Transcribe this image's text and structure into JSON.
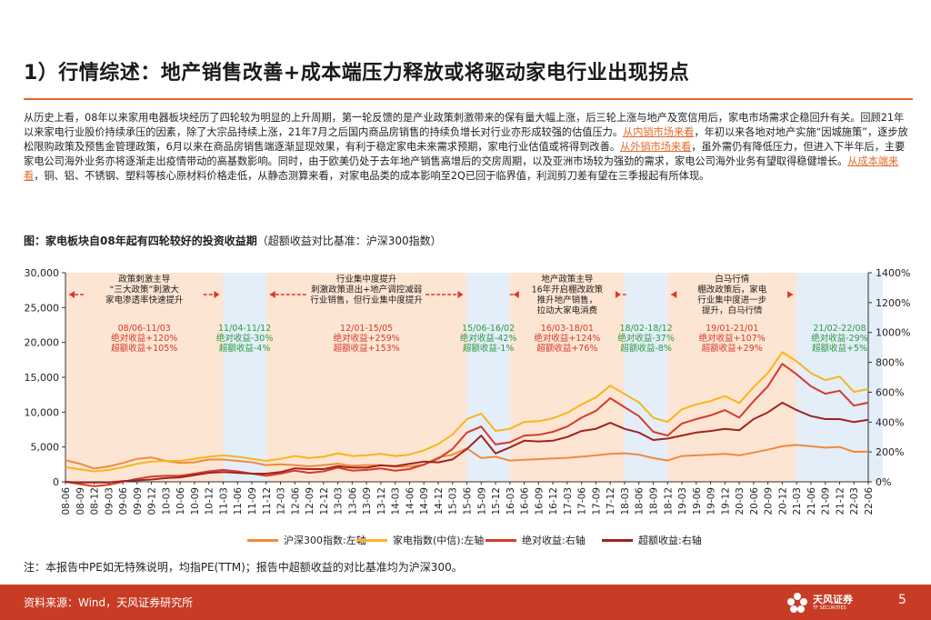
{
  "header": {
    "title": "1）行情综述：地产销售改善+成本端压力释放或将驱动家电行业出现拐点"
  },
  "intro": {
    "p1": "从历史上看，08年以来家用电器板块经历了四轮较为明显的上升周期，第一轮反馈的是产业政策刺激带来的保有量大幅上涨，后三轮上涨与地产及宽信用后，家电市场需求企稳回升有关。回顾21年以来家电行业股价持续承压的因素，除了大宗品持续上涨，21年7月之后国内商品房销售的持续负增长对行业亦形成较强的估值压力。",
    "hl1": "从内销市场来看",
    "p2": "，年初以来各地对地产实施“因城施策”，逐步放松限购政策及预售金管理政策，6月以来在商品房销售端逐渐显现效果，有利于稳定家电未来需求预期，家电行业估值或将得到改善。",
    "hl2": "从外销市场来看",
    "p3": "，虽外需仍有降低压力，但进入下半年后，主要家电公司海外业务亦将逐渐走出疫情带动的高基数影响。同时，由于欧美仍处于去年地产销售高增后的交房周期，以及亚洲市场较为强劲的需求，家电公司海外业务有望取得稳健增长。",
    "hl3": "从成本端来看",
    "p4": "，铜、铝、不锈钢、塑料等核心原材料价格走低，从静态测算来看，对家电品类的成本影响至2Q已回于临界值，利润剪刀差有望在三季报起有所体现。"
  },
  "figure": {
    "caption_bold": "图：家电板块自08年起有四轮较好的投资收益期",
    "caption_rest": "（超额收益对比基准：沪深300指数）"
  },
  "chart_data": {
    "type": "line",
    "x_ticks": [
      "08-06",
      "08-09",
      "08-12",
      "09-03",
      "09-06",
      "09-09",
      "09-12",
      "10-03",
      "10-06",
      "10-09",
      "10-12",
      "11-03",
      "11-06",
      "11-09",
      "11-12",
      "12-03",
      "12-06",
      "12-09",
      "12-12",
      "13-03",
      "13-06",
      "13-09",
      "13-12",
      "14-03",
      "14-06",
      "14-09",
      "14-12",
      "15-03",
      "15-06",
      "15-09",
      "15-12",
      "16-03",
      "16-06",
      "16-09",
      "16-12",
      "17-03",
      "17-06",
      "17-09",
      "17-12",
      "18-03",
      "18-06",
      "18-09",
      "18-12",
      "19-03",
      "19-06",
      "19-09",
      "19-12",
      "20-03",
      "20-06",
      "20-09",
      "20-12",
      "21-03",
      "21-06",
      "21-09",
      "21-12",
      "22-03",
      "22-06"
    ],
    "y_left": {
      "min": 0,
      "max": 30000,
      "ticks": [
        "0",
        "5,000",
        "10,000",
        "15,000",
        "20,000",
        "25,000",
        "30,000"
      ]
    },
    "y_right": {
      "min": 0,
      "max": 1400,
      "ticks": [
        "0%",
        "200%",
        "400%",
        "600%",
        "800%",
        "1000%",
        "1200%",
        "1400%"
      ]
    },
    "series": [
      {
        "name": "沪深300指数:左轴",
        "axis": "left",
        "color": "#f08a3c",
        "values": [
          3100,
          2600,
          1900,
          2200,
          2700,
          3300,
          3500,
          3000,
          2700,
          2800,
          3200,
          3200,
          3000,
          2800,
          2400,
          2500,
          2400,
          2200,
          2400,
          2600,
          2300,
          2400,
          2400,
          2150,
          2200,
          2450,
          3500,
          3900,
          4800,
          3400,
          3600,
          3050,
          3150,
          3250,
          3350,
          3450,
          3600,
          3800,
          4000,
          4100,
          3900,
          3400,
          3050,
          3700,
          3800,
          3900,
          4000,
          3800,
          4200,
          4600,
          5100,
          5300,
          5100,
          4900,
          5000,
          4300,
          4350
        ]
      },
      {
        "name": "家电指数(中信):左轴",
        "axis": "left",
        "color": "#f7b51d",
        "values": [
          2100,
          1800,
          1500,
          1700,
          2100,
          2600,
          2900,
          3000,
          3000,
          3300,
          3600,
          3800,
          3600,
          3300,
          3000,
          3300,
          3700,
          3400,
          3600,
          4100,
          3700,
          3800,
          4000,
          3700,
          3900,
          4500,
          5400,
          6800,
          9000,
          9800,
          7300,
          7600,
          8600,
          8700,
          9100,
          9900,
          11100,
          12100,
          13800,
          12600,
          11400,
          9200,
          8600,
          10400,
          11100,
          11600,
          12300,
          11300,
          13600,
          15600,
          18600,
          17300,
          15600,
          14600,
          15100,
          12900,
          13300
        ]
      },
      {
        "name": "绝对收益:右轴",
        "axis": "right",
        "color": "#d63a2a",
        "values": [
          0,
          -15,
          -30,
          -20,
          0,
          20,
          35,
          40,
          40,
          55,
          70,
          80,
          70,
          55,
          40,
          55,
          75,
          60,
          70,
          95,
          75,
          80,
          90,
          75,
          85,
          115,
          155,
          220,
          330,
          370,
          250,
          265,
          310,
          315,
          335,
          370,
          430,
          475,
          560,
          500,
          440,
          335,
          310,
          390,
          420,
          445,
          480,
          430,
          540,
          640,
          790,
          720,
          640,
          590,
          610,
          510,
          530
        ]
      },
      {
        "name": "超额收益:右轴",
        "axis": "right",
        "color": "#9e2420",
        "values": [
          0,
          -5,
          -5,
          -5,
          5,
          10,
          15,
          25,
          30,
          45,
          60,
          65,
          60,
          55,
          55,
          65,
          90,
          85,
          85,
          105,
          95,
          95,
          110,
          105,
          120,
          135,
          130,
          150,
          220,
          310,
          190,
          230,
          275,
          270,
          275,
          300,
          340,
          355,
          395,
          355,
          330,
          280,
          290,
          310,
          330,
          340,
          355,
          345,
          420,
          465,
          530,
          480,
          440,
          420,
          420,
          400,
          415
        ]
      }
    ],
    "shaded_periods": [
      {
        "type": "up",
        "start": 0,
        "end": 11
      },
      {
        "type": "down",
        "start": 11,
        "end": 14
      },
      {
        "type": "up",
        "start": 14,
        "end": 28
      },
      {
        "type": "down",
        "start": 28,
        "end": 31
      },
      {
        "type": "up",
        "start": 31,
        "end": 39
      },
      {
        "type": "down",
        "start": 39,
        "end": 42
      },
      {
        "type": "up",
        "start": 42,
        "end": 51
      },
      {
        "type": "down",
        "start": 51,
        "end": 57
      }
    ],
    "annotations": [
      {
        "idx": 5.5,
        "desc": [
          "政策刺激主导",
          "“三大政策”刺激大",
          "家电渗透率快速提升"
        ],
        "arrow": true,
        "dates": "08/06-11/03",
        "abs": "绝对收益+120%",
        "exc": "超额收益+105%",
        "color": "#d63a2a"
      },
      {
        "idx": 12.5,
        "desc": [],
        "arrow": false,
        "dates": "11/04-11/12",
        "abs": "绝对收益-30%",
        "exc": "超额收益-4%",
        "color": "#2e9a3e"
      },
      {
        "idx": 21,
        "desc": [
          "行业集中度提升",
          "刺激政策退出+地产调控减弱",
          "行业销售，但行业集中度提升"
        ],
        "arrow": true,
        "dates": "12/01-15/05",
        "abs": "绝对收益+259%",
        "exc": "超额收益+153%",
        "color": "#d63a2a"
      },
      {
        "idx": 29.5,
        "desc": [],
        "arrow": false,
        "dates": "15/06-16/02",
        "abs": "绝对收益-42%",
        "exc": "超额收益-1%",
        "color": "#2e9a3e"
      },
      {
        "idx": 35,
        "desc": [
          "地产政策主导",
          "16年开启棚改政策",
          "推升地产销售，",
          "拉动大家电消费"
        ],
        "arrow": true,
        "dates": "16/03-18/01",
        "abs": "绝对收益+124%",
        "exc": "超额收益+76%",
        "color": "#d63a2a"
      },
      {
        "idx": 40.5,
        "desc": [],
        "arrow": false,
        "dates": "18/02-18/12",
        "abs": "绝对收益-37%",
        "exc": "超额收益-8%",
        "color": "#2e9a3e"
      },
      {
        "idx": 46.5,
        "desc": [
          "白马行情",
          "棚改政策后，家电",
          "行业集中度进一步",
          "提升，白马行情"
        ],
        "arrow": true,
        "dates": "19/01-21/01",
        "abs": "绝对收益+107%",
        "exc": "超额收益+29%",
        "color": "#d63a2a"
      },
      {
        "idx": 54,
        "desc": [],
        "arrow": false,
        "dates": "21/02-22/08",
        "abs": "绝对收益-29%",
        "exc": "超额收益+5%",
        "color": "#2e9a3e"
      }
    ],
    "colors": {
      "up_band": "#fde5d3",
      "down_band": "#e3eef9",
      "arrow": "#d63a2a",
      "grid": "#dddddd"
    }
  },
  "legend": {
    "items": [
      {
        "label": "沪深300指数:左轴",
        "color": "#f08a3c"
      },
      {
        "label": "家电指数(中信):左轴",
        "color": "#f7b51d"
      },
      {
        "label": "绝对收益:右轴",
        "color": "#d63a2a"
      },
      {
        "label": "超额收益:右轴",
        "color": "#9e2420"
      }
    ]
  },
  "note": "注：本报告中PE如无特殊说明，均指PE(TTM)；报告中超额收益的对比基准均为沪深300。",
  "footer": {
    "source": "资料来源：Wind，天风证券研究所",
    "logo_text": "天风证券",
    "logo_sub": "TF SECURITIES",
    "page": "5"
  }
}
